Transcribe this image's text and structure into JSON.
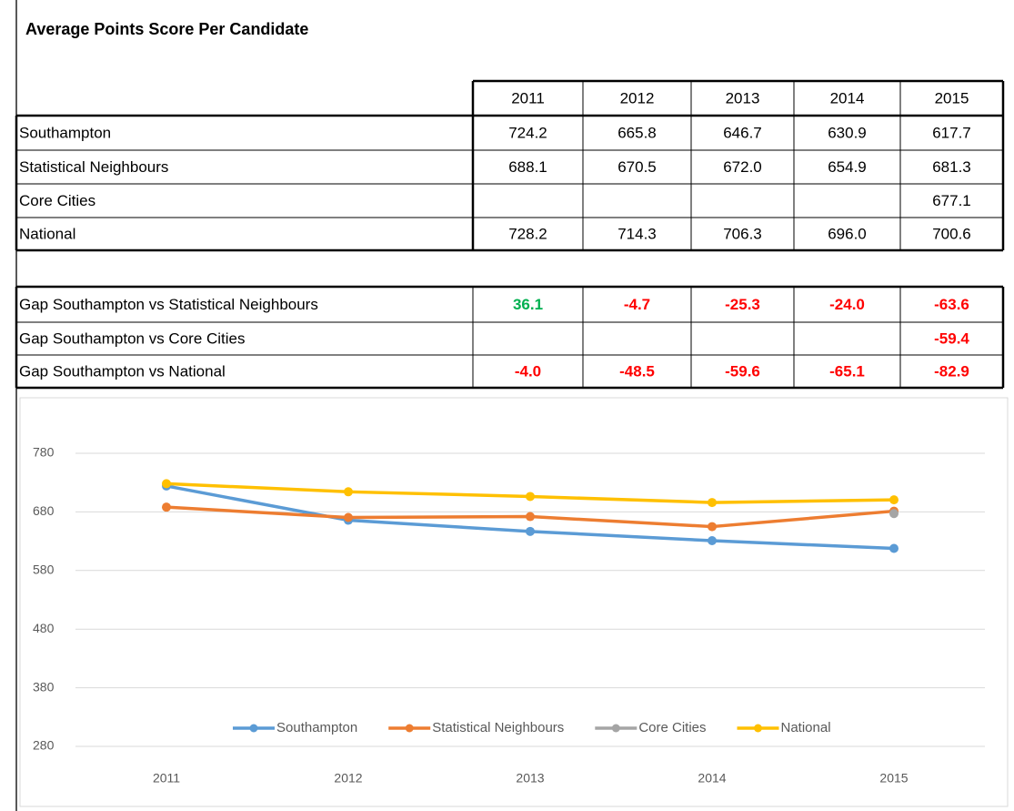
{
  "title": "Average Points Score Per Candidate",
  "table": {
    "columns": [
      "2011",
      "2012",
      "2013",
      "2014",
      "2015"
    ],
    "rows": [
      {
        "label": "Southampton",
        "values": [
          "724.2",
          "665.8",
          "646.7",
          "630.9",
          "617.7"
        ]
      },
      {
        "label": "Statistical Neighbours",
        "values": [
          "688.1",
          "670.5",
          "672.0",
          "654.9",
          "681.3"
        ]
      },
      {
        "label": "Core Cities",
        "values": [
          null,
          null,
          null,
          null,
          "677.1"
        ]
      },
      {
        "label": "National",
        "values": [
          "728.2",
          "714.3",
          "706.3",
          "696.0",
          "700.6"
        ]
      }
    ]
  },
  "gaps": {
    "positive_color": "#00b050",
    "negative_color": "#ff0000",
    "rows": [
      {
        "label": "Gap Southampton vs Statistical Neighbours",
        "values": [
          "36.1",
          "-4.7",
          "-25.3",
          "-24.0",
          "-63.6"
        ]
      },
      {
        "label": "Gap Southampton vs Core Cities",
        "values": [
          null,
          null,
          null,
          null,
          "-59.4"
        ]
      },
      {
        "label": "Gap Southampton vs National",
        "values": [
          "-4.0",
          "-48.5",
          "-59.6",
          "-65.1",
          "-82.9"
        ]
      }
    ]
  },
  "chart_data": {
    "type": "line",
    "categories": [
      "2011",
      "2012",
      "2013",
      "2014",
      "2015"
    ],
    "series": [
      {
        "name": "Southampton",
        "color": "#5b9bd5",
        "values": [
          724.2,
          665.8,
          646.7,
          630.9,
          617.7
        ]
      },
      {
        "name": "Statistical Neighbours",
        "color": "#ed7d31",
        "values": [
          688.1,
          670.5,
          672.0,
          654.9,
          681.3
        ]
      },
      {
        "name": "Core Cities",
        "color": "#a5a5a5",
        "values": [
          null,
          null,
          null,
          null,
          677.1
        ]
      },
      {
        "name": "National",
        "color": "#ffc000",
        "values": [
          728.2,
          714.3,
          706.3,
          696.0,
          700.6
        ]
      }
    ],
    "ylim": [
      280,
      780
    ],
    "yticks": [
      280,
      380,
      480,
      580,
      680,
      780
    ],
    "grid": true,
    "legend": "bottom"
  }
}
